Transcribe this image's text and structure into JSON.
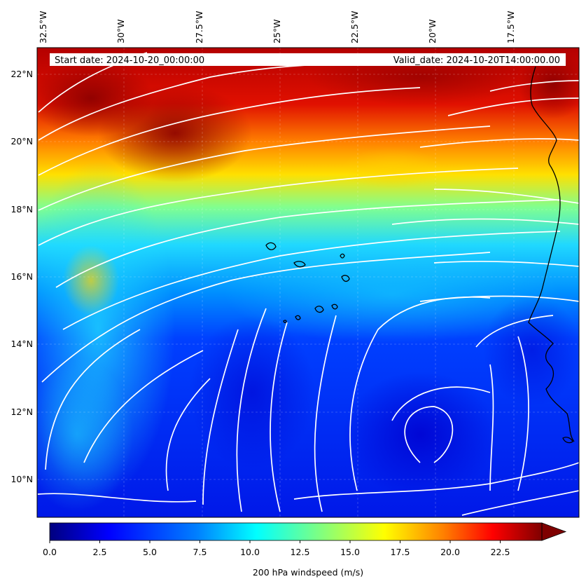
{
  "header": {
    "start_date": "Start date: 2024-10-20_00:00:00",
    "valid_date": "Valid_date: 2024-10-20T14:00:00.00"
  },
  "map": {
    "lon_labels": [
      "32.5°W",
      "30°W",
      "27.5°W",
      "25°W",
      "22.5°W",
      "20°W",
      "17.5°W"
    ],
    "lat_labels": [
      "22°N",
      "20°N",
      "18°N",
      "16°N",
      "14°N",
      "12°N",
      "10°N"
    ],
    "streamline_color": "#ffffff",
    "coastline_color": "#000000"
  },
  "colorbar": {
    "label": "200 hPa windspeed (m/s)",
    "ticks": [
      "0.0",
      "2.5",
      "5.0",
      "7.5",
      "10.0",
      "12.5",
      "15.0",
      "17.5",
      "20.0",
      "22.5"
    ],
    "colormap": [
      "#00007f",
      "#0000ff",
      "#0080ff",
      "#00ffff",
      "#80ff80",
      "#ffff00",
      "#ff8000",
      "#ff0000",
      "#7f0000"
    ]
  }
}
